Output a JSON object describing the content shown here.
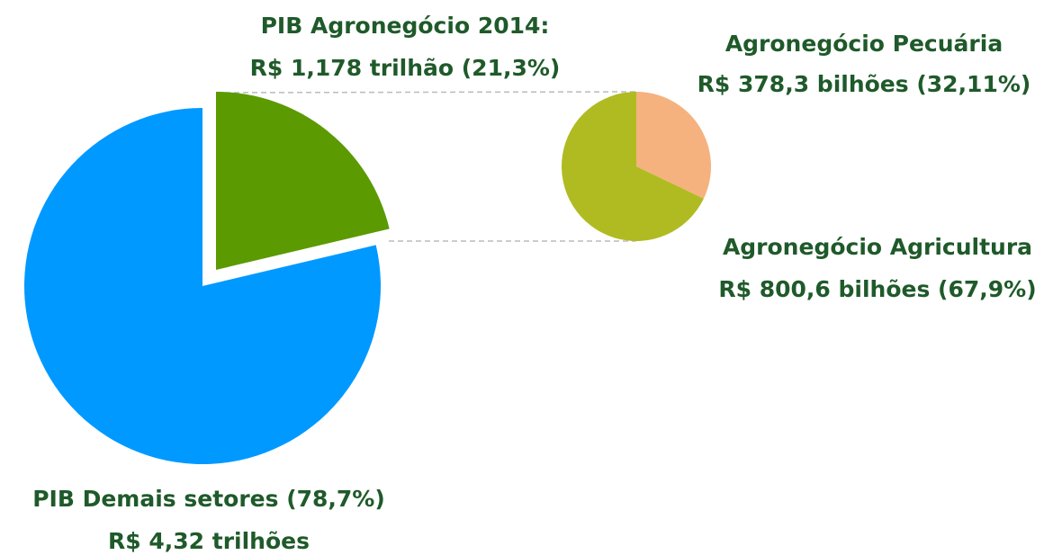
{
  "chart_data": [
    {
      "type": "pie",
      "values": [
        21.3,
        78.7
      ],
      "colors": [
        "#5b9a00",
        "#0099ff"
      ],
      "labels": [
        [
          "PIB Agronegócio 2014:",
          "R$ 1,178 trilhão  (21,3%)"
        ],
        [
          "PIB Demais setores  (78,7%)",
          "R$ 4,32 trilhões"
        ]
      ]
    },
    {
      "type": "pie",
      "values": [
        32.11,
        67.9
      ],
      "colors": [
        "#f5b27e",
        "#b0bb22"
      ],
      "labels": [
        [
          "Agronegócio Pecuária",
          "R$ 378,3 bilhões (32,11%)"
        ],
        [
          "Agronegócio Agricultura",
          "R$ 800,6 bilhões (67,9%)"
        ]
      ]
    }
  ]
}
